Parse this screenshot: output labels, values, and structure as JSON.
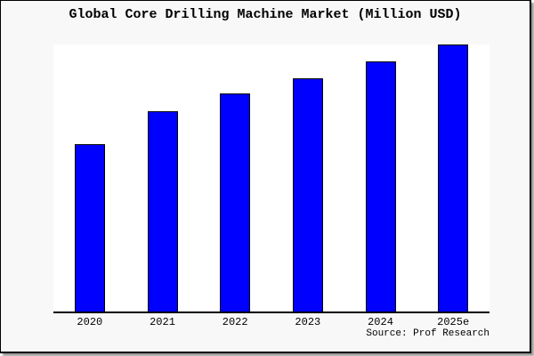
{
  "figure": {
    "background_color": "#f8f8f8",
    "plot_background_color": "#ffffff",
    "frame_color": "#000000",
    "source_label": "Source: Prof Research"
  },
  "chart_data": {
    "type": "bar",
    "title": "Global Core Drilling Machine Market (Million USD)",
    "categories": [
      "2020",
      "2021",
      "2022",
      "2023",
      "2024",
      "2025e"
    ],
    "values": [
      62.7,
      75.0,
      81.7,
      87.3,
      93.7,
      100.0
    ],
    "values_note": "no y-axis or data labels shown; values estimated as bar height in % of tallest bar (2025e)",
    "xlabel": "",
    "ylabel": "",
    "ylim": [
      0,
      100
    ],
    "grid": false,
    "legend_position": "none",
    "bar_color": "#0000ff",
    "bar_border_color": "#000000",
    "axis_color": "#000000",
    "source": "Source: Prof Research"
  }
}
